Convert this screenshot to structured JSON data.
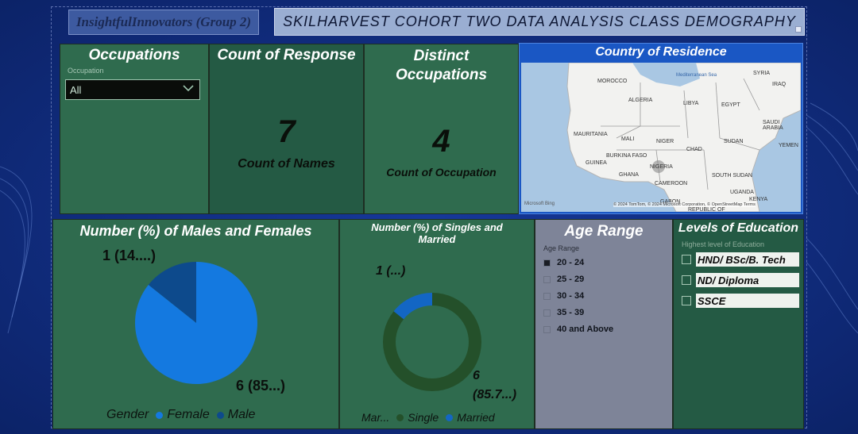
{
  "group_title": "InsightfulInnovators (Group 2)",
  "banner_title": "SKILHARVEST COHORT TWO DATA ANALYSIS CLASS DEMOGRAPHY",
  "occupations": {
    "title": "Occupations",
    "slicer_label": "Occupation",
    "selected": "All"
  },
  "count_of_response": {
    "title": "Count of Response",
    "value": "7",
    "label": "Count of Names"
  },
  "distinct_occupations": {
    "title": "Distinct Occupations",
    "value": "4",
    "label": "Count of Occupation"
  },
  "map": {
    "title": "Country of Residence",
    "countries": [
      "MOROCCO",
      "ALGERIA",
      "LIBYA",
      "EGYPT",
      "SYRIA",
      "IRAQ",
      "SAUDI ARABIA",
      "YEMEN",
      "MAURITANIA",
      "MALI",
      "NIGER",
      "CHAD",
      "SUDAN",
      "BURKINA FASO",
      "GUINEA",
      "GHANA",
      "NIGERIA",
      "CAMEROON",
      "SOUTH SUDAN",
      "UGANDA",
      "KENYA",
      "GABON",
      "REPUBLIC OF"
    ],
    "sea_label": "Mediterranean Sea",
    "credit": "© 2024 TomTom, © 2024 Microsoft Corporation, © OpenStreetMap Terms",
    "brand": "Microsoft Bing"
  },
  "gender_chart": {
    "title": "Number (%) of Males and Females",
    "legend_title": "Gender",
    "colors": {
      "Female": "#1479e0",
      "Male": "#0d4a8c"
    },
    "chart_data": {
      "type": "pie",
      "categories": [
        "Female",
        "Male"
      ],
      "values": [
        6,
        1
      ],
      "labels": [
        "6 (85...)",
        "1 (14....)"
      ]
    }
  },
  "marital_chart": {
    "title": "Number (%) of Singles and Married",
    "legend_title": "Mar...",
    "colors": {
      "Single": "#24502a",
      "Married": "#1366c4"
    },
    "chart_data": {
      "type": "pie",
      "categories": [
        "Single",
        "Married"
      ],
      "values": [
        6,
        1
      ],
      "labels": [
        "6",
        "(85.7...)",
        "1 (...)"
      ]
    }
  },
  "age_range": {
    "title": "Age Range",
    "slicer_label": "Age Range",
    "items": [
      {
        "label": "20 - 24",
        "checked": true
      },
      {
        "label": "25 - 29",
        "checked": false
      },
      {
        "label": "30 - 34",
        "checked": false
      },
      {
        "label": "35 - 39",
        "checked": false
      },
      {
        "label": "40 and Above",
        "checked": false
      }
    ]
  },
  "education": {
    "title": "Levels of Education",
    "slicer_label": "Highest level of Education",
    "items": [
      "HND/ BSc/B. Tech",
      "ND/ Diploma",
      "SSCE"
    ]
  }
}
